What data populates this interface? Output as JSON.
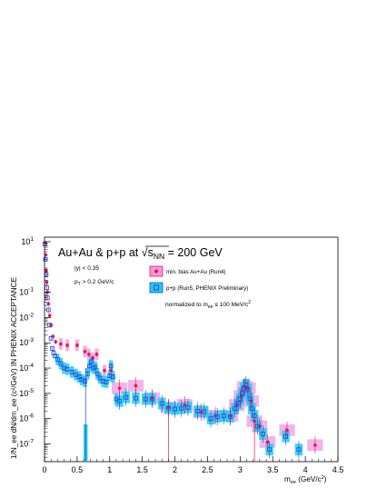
{
  "chart_data": {
    "type": "scatter",
    "title": "Au+Au & p+p at √sNN = 200 GeV",
    "title_parts": {
      "prefix": "Au+Au & p+p at ",
      "root": "s",
      "sub": "NN",
      "suffix": " = 200 GeV"
    },
    "xlabel": "m",
    "xlabel_sub": "ee",
    "xlabel_unit": " (GeV/c",
    "xlabel_unit_sup": "2",
    "xlabel_unit_end": ")",
    "ylabel": "1/N_ee dN/dm_ee (c²/GeV) IN PHENIX ACCEPTANCE",
    "xlim": [
      0,
      4.5
    ],
    "ylim": [
      2e-08,
      15
    ],
    "y_scale": "log",
    "x_ticks": [
      "0",
      "0.5",
      "1",
      "1.5",
      "2",
      "2.5",
      "3",
      "3.5",
      "4",
      "4.5"
    ],
    "y_ticks": [
      {
        "base": "10",
        "exp": "1"
      },
      {
        "base": "10",
        "exp": "-1"
      },
      {
        "base": "10",
        "exp": "-2"
      },
      {
        "base": "10",
        "exp": "-3"
      },
      {
        "base": "10",
        "exp": "-4"
      },
      {
        "base": "10",
        "exp": "-5"
      },
      {
        "base": "10",
        "exp": "-6"
      },
      {
        "base": "10",
        "exp": "-7"
      }
    ],
    "annotations": {
      "rapidity": "|y| < 0.35",
      "pt_cut": {
        "p": "p",
        "sub": "T",
        "rest": " > 0.2 GeV/c"
      },
      "normalized": {
        "text": "normalized to m",
        "sub": "ee",
        "rest": " ≤ 100 MeV/c",
        "sup": "2"
      }
    },
    "legend_position": "top-right",
    "series": [
      {
        "name": "min. bias Au+Au (Run4)",
        "marker": "filled-circle",
        "color": "#ee1155",
        "band_color": "#f09ae0",
        "points": [
          {
            "x": 0.005,
            "y": 9.0
          },
          {
            "x": 0.015,
            "y": 3.0
          },
          {
            "x": 0.025,
            "y": 0.7
          },
          {
            "x": 0.035,
            "y": 0.25
          },
          {
            "x": 0.045,
            "y": 0.1
          },
          {
            "x": 0.06,
            "y": 0.035
          },
          {
            "x": 0.08,
            "y": 0.012
          },
          {
            "x": 0.1,
            "y": 0.005
          },
          {
            "x": 0.13,
            "y": 0.0018
          },
          {
            "x": 0.17,
            "y": 0.0011
          },
          {
            "x": 0.25,
            "y": 0.0009
          },
          {
            "x": 0.35,
            "y": 0.0008
          },
          {
            "x": 0.5,
            "y": 0.0008
          },
          {
            "x": 0.62,
            "y": 0.00045
          },
          {
            "x": 0.68,
            "y": 0.00035
          },
          {
            "x": 0.74,
            "y": 0.00025
          },
          {
            "x": 0.8,
            "y": 0.00035
          },
          {
            "x": 0.92,
            "y": 8e-05
          },
          {
            "x": 1.02,
            "y": 8e-05
          },
          {
            "x": 1.15,
            "y": 1.6e-05
          },
          {
            "x": 1.4,
            "y": 2e-05
          },
          {
            "x": 1.65,
            "y": 6.5e-06
          },
          {
            "x": 1.9,
            "y": 2.8e-06
          },
          {
            "x": 2.15,
            "y": 3.5e-06
          },
          {
            "x": 2.4,
            "y": 1.8e-06
          },
          {
            "x": 2.62,
            "y": 1.3e-06
          },
          {
            "x": 2.85,
            "y": 1.3e-06
          },
          {
            "x": 2.95,
            "y": 3.5e-06
          },
          {
            "x": 3.02,
            "y": 8e-06
          },
          {
            "x": 3.07,
            "y": 1.8e-05
          },
          {
            "x": 3.12,
            "y": 1.6e-05
          },
          {
            "x": 3.17,
            "y": 5e-06
          },
          {
            "x": 3.22,
            "y": 8e-07
          },
          {
            "x": 3.3,
            "y": 5e-07
          },
          {
            "x": 3.42,
            "y": 1.2e-07
          },
          {
            "x": 3.72,
            "y": 3.5e-07
          },
          {
            "x": 4.15,
            "y": 9e-08
          }
        ]
      },
      {
        "name": "p+p (Run5, PHENIX Preliminary)",
        "marker": "open-square",
        "color": "#2244dd",
        "band_color": "#22ccee",
        "points": [
          {
            "x": 0.005,
            "y": 8.0
          },
          {
            "x": 0.015,
            "y": 2.0
          },
          {
            "x": 0.025,
            "y": 0.5
          },
          {
            "x": 0.035,
            "y": 0.15
          },
          {
            "x": 0.045,
            "y": 0.06
          },
          {
            "x": 0.06,
            "y": 0.02
          },
          {
            "x": 0.08,
            "y": 0.005
          },
          {
            "x": 0.1,
            "y": 0.0015
          },
          {
            "x": 0.12,
            "y": 0.0006
          },
          {
            "x": 0.14,
            "y": 0.0004
          },
          {
            "x": 0.16,
            "y": 0.0003
          },
          {
            "x": 0.2,
            "y": 0.00022
          },
          {
            "x": 0.25,
            "y": 0.00015
          },
          {
            "x": 0.3,
            "y": 0.0001
          },
          {
            "x": 0.35,
            "y": 9e-05
          },
          {
            "x": 0.42,
            "y": 7e-05
          },
          {
            "x": 0.48,
            "y": 5.5e-05
          },
          {
            "x": 0.53,
            "y": 4.5e-05
          },
          {
            "x": 0.57,
            "y": 3.5e-05
          },
          {
            "x": 0.62,
            "y": 3e-05
          },
          {
            "x": 0.66,
            "y": 6e-05
          },
          {
            "x": 0.69,
            "y": 0.00012
          },
          {
            "x": 0.72,
            "y": 0.00018
          },
          {
            "x": 0.75,
            "y": 0.0001
          },
          {
            "x": 0.78,
            "y": 0.00011
          },
          {
            "x": 0.81,
            "y": 6e-05
          },
          {
            "x": 0.85,
            "y": 4e-05
          },
          {
            "x": 0.9,
            "y": 3e-05
          },
          {
            "x": 0.95,
            "y": 2.8e-05
          },
          {
            "x": 1.0,
            "y": 5e-05
          },
          {
            "x": 1.02,
            "y": 0.00012
          },
          {
            "x": 1.05,
            "y": 4.5e-05
          },
          {
            "x": 1.1,
            "y": 6e-06
          },
          {
            "x": 1.15,
            "y": 5e-06
          },
          {
            "x": 1.25,
            "y": 7e-06
          },
          {
            "x": 1.4,
            "y": 6.5e-06
          },
          {
            "x": 1.55,
            "y": 6e-06
          },
          {
            "x": 1.65,
            "y": 6e-06
          },
          {
            "x": 1.8,
            "y": 4e-06
          },
          {
            "x": 1.9,
            "y": 2.6e-06
          },
          {
            "x": 2.0,
            "y": 2.4e-06
          },
          {
            "x": 2.1,
            "y": 2.6e-06
          },
          {
            "x": 2.2,
            "y": 2.8e-06
          },
          {
            "x": 2.35,
            "y": 2e-06
          },
          {
            "x": 2.45,
            "y": 1.9e-06
          },
          {
            "x": 2.55,
            "y": 1e-06
          },
          {
            "x": 2.65,
            "y": 1.2e-06
          },
          {
            "x": 2.75,
            "y": 1.3e-06
          },
          {
            "x": 2.85,
            "y": 1.2e-06
          },
          {
            "x": 2.92,
            "y": 2.5e-06
          },
          {
            "x": 2.97,
            "y": 4e-06
          },
          {
            "x": 3.0,
            "y": 6e-06
          },
          {
            "x": 3.03,
            "y": 1e-05
          },
          {
            "x": 3.06,
            "y": 1.6e-05
          },
          {
            "x": 3.09,
            "y": 2.2e-05
          },
          {
            "x": 3.12,
            "y": 1.4e-05
          },
          {
            "x": 3.15,
            "y": 6e-06
          },
          {
            "x": 3.18,
            "y": 2.5e-06
          },
          {
            "x": 3.22,
            "y": 1.3e-06
          },
          {
            "x": 3.27,
            "y": 5e-07
          },
          {
            "x": 3.35,
            "y": 2.5e-07
          },
          {
            "x": 3.45,
            "y": 6e-08
          },
          {
            "x": 3.7,
            "y": 2e-07
          },
          {
            "x": 3.9,
            "y": 6e-08
          }
        ]
      }
    ],
    "low_points": [
      {
        "x": 0.63,
        "y": 2e-08,
        "from": 6e-07
      }
    ]
  }
}
